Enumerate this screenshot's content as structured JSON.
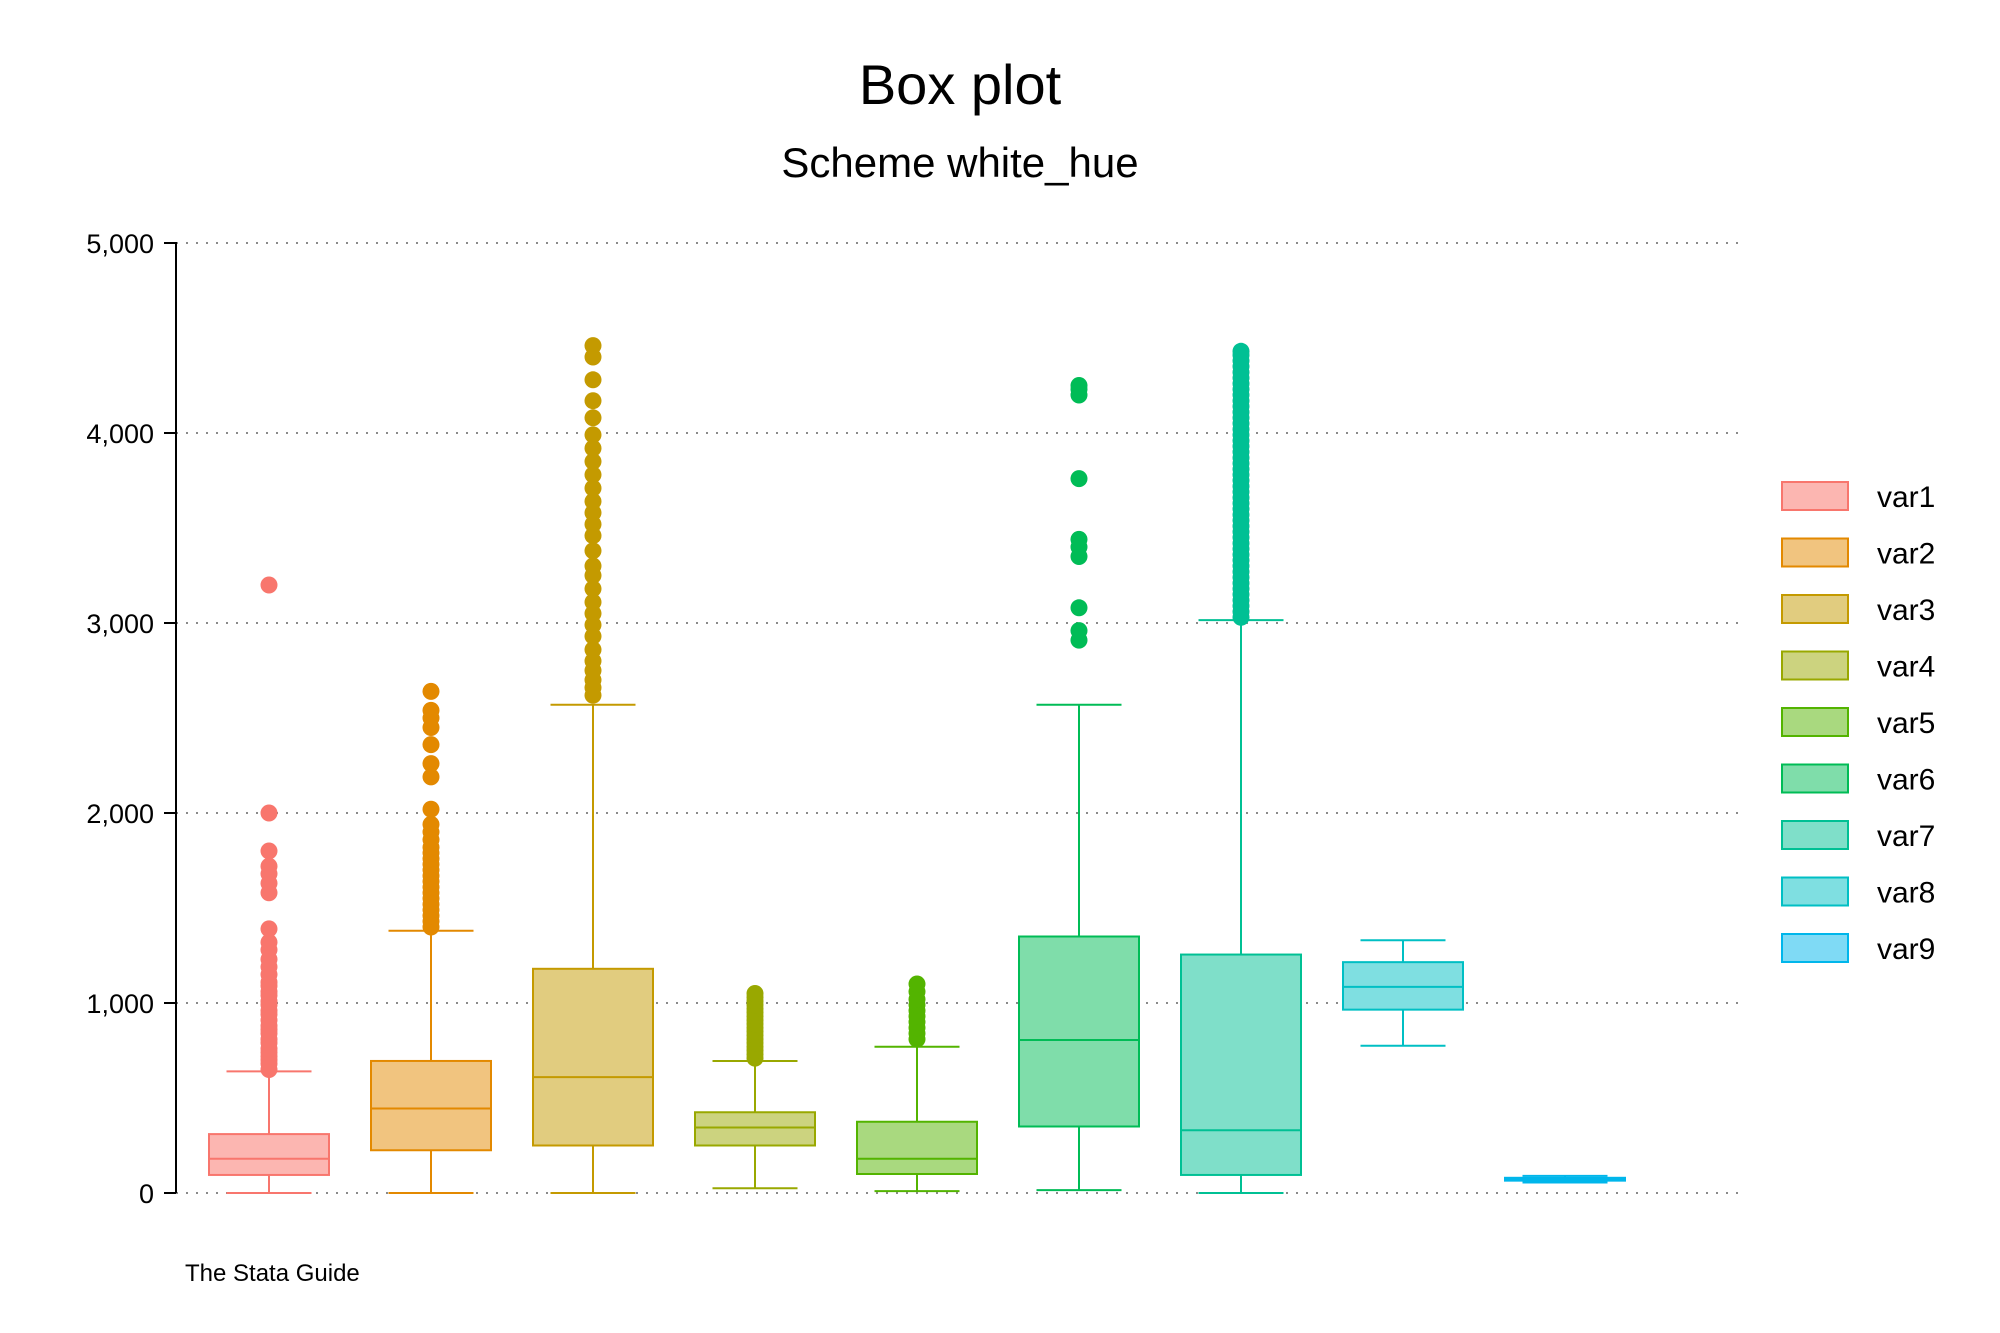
{
  "chart_data": {
    "type": "box",
    "title": "Box plot",
    "subtitle": "Scheme white_hue",
    "note": "The Stata Guide",
    "ylim": [
      0,
      5000
    ],
    "yticks": [
      0,
      1000,
      2000,
      3000,
      4000,
      5000
    ],
    "ytick_labels": [
      "0",
      "1,000",
      "2,000",
      "3,000",
      "4,000",
      "5,000"
    ],
    "grid": true,
    "legend_position": "right",
    "series": [
      {
        "name": "var1",
        "color": "#F8766D",
        "fill": "#FCB6B1",
        "min": 0,
        "q1": 95,
        "median": 180,
        "q3": 310,
        "max": 640,
        "outliers": [
          650,
          680,
          700,
          720,
          740,
          760,
          790,
          810,
          840,
          860,
          880,
          910,
          940,
          960,
          990,
          1010,
          1040,
          1060,
          1090,
          1110,
          1150,
          1190,
          1230,
          1280,
          1320,
          1390,
          1580,
          1630,
          1680,
          1720,
          1800,
          2000,
          3200
        ]
      },
      {
        "name": "var2",
        "color": "#E38900",
        "fill": "#F1C47F",
        "min": 0,
        "q1": 225,
        "median": 445,
        "q3": 695,
        "max": 1380,
        "outliers": [
          1400,
          1430,
          1460,
          1490,
          1520,
          1550,
          1580,
          1610,
          1640,
          1670,
          1700,
          1730,
          1760,
          1790,
          1820,
          1860,
          1900,
          1940,
          2020,
          2190,
          2260,
          2360,
          2450,
          2500,
          2540,
          2640
        ]
      },
      {
        "name": "var3",
        "color": "#C49A00",
        "fill": "#E1CC7F",
        "min": 0,
        "q1": 250,
        "median": 610,
        "q3": 1180,
        "max": 2570,
        "outliers": [
          2620,
          2660,
          2700,
          2750,
          2800,
          2860,
          2930,
          2990,
          3050,
          3110,
          3180,
          3250,
          3300,
          3380,
          3460,
          3520,
          3580,
          3640,
          3710,
          3780,
          3850,
          3920,
          3990,
          4080,
          4170,
          4280,
          4400,
          4460
        ]
      },
      {
        "name": "var4",
        "color": "#99A800",
        "fill": "#CCD37F",
        "min": 25,
        "q1": 250,
        "median": 345,
        "q3": 425,
        "max": 695,
        "outliers": [
          710,
          730,
          750,
          770,
          790,
          810,
          830,
          850,
          870,
          890,
          910,
          930,
          950,
          970,
          990,
          1010,
          1030,
          1050
        ]
      },
      {
        "name": "var5",
        "color": "#53B400",
        "fill": "#A9D97F",
        "min": 10,
        "q1": 100,
        "median": 180,
        "q3": 375,
        "max": 770,
        "outliers": [
          810,
          840,
          870,
          900,
          930,
          960,
          990,
          1020,
          1060,
          1100
        ]
      },
      {
        "name": "var6",
        "color": "#00BC56",
        "fill": "#7FDDAA",
        "min": 15,
        "q1": 350,
        "median": 805,
        "q3": 1350,
        "max": 2570,
        "outliers": [
          2910,
          2960,
          3080,
          3350,
          3400,
          3440,
          3760,
          4200,
          4230,
          4250
        ]
      },
      {
        "name": "var7",
        "color": "#00C094",
        "fill": "#7FDFC9",
        "min": 0,
        "q1": 95,
        "median": 330,
        "q3": 1255,
        "max": 3015,
        "outliers": [
          3030,
          3060,
          3090,
          3120,
          3150,
          3180,
          3210,
          3240,
          3270,
          3300,
          3330,
          3360,
          3390,
          3420,
          3450,
          3480,
          3510,
          3540,
          3570,
          3600,
          3630,
          3660,
          3690,
          3720,
          3750,
          3780,
          3810,
          3840,
          3870,
          3900,
          3930,
          3960,
          3990,
          4020,
          4050,
          4080,
          4110,
          4140,
          4170,
          4200,
          4230,
          4260,
          4290,
          4320,
          4350,
          4380,
          4410,
          4430
        ]
      },
      {
        "name": "var8",
        "color": "#00BFC4",
        "fill": "#7FDFE1",
        "min": 775,
        "q1": 965,
        "median": 1085,
        "q3": 1215,
        "max": 1330,
        "outliers": []
      },
      {
        "name": "var9",
        "color": "#00B6EB",
        "fill": "#7FDAF5",
        "min": 55,
        "q1": 65,
        "median": 72,
        "q3": 80,
        "max": 90,
        "outliers": []
      }
    ]
  }
}
